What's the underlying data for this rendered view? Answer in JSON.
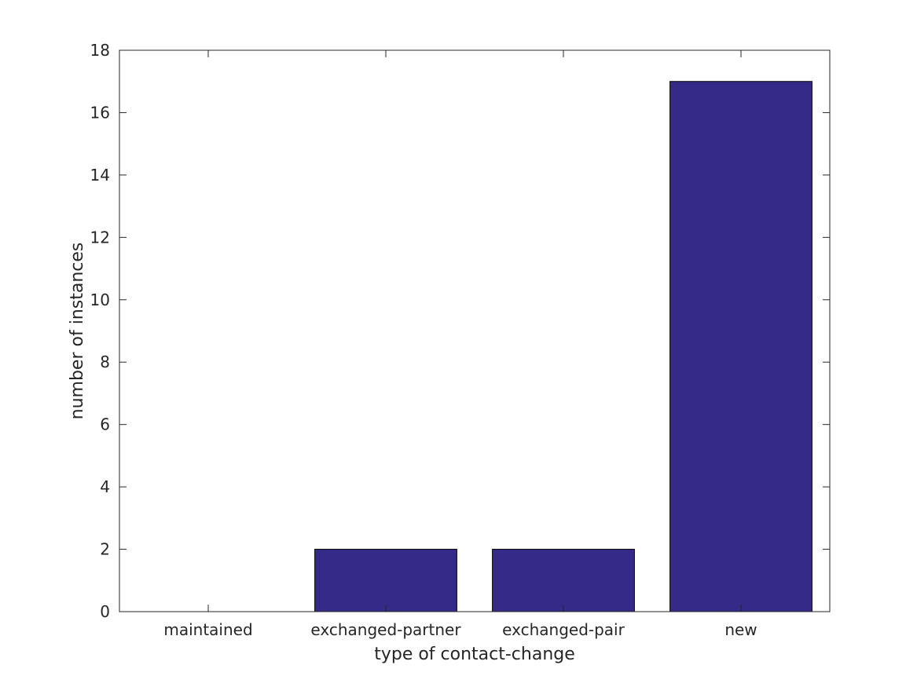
{
  "chart_data": {
    "type": "bar",
    "title": "",
    "xlabel": "type of contact-change",
    "ylabel": "number of instances",
    "categories": [
      "maintained",
      "exchanged-partner",
      "exchanged-pair",
      "new"
    ],
    "values": [
      0,
      2,
      2,
      17
    ],
    "ylim": [
      0,
      18
    ],
    "yticks": [
      0,
      2,
      4,
      6,
      8,
      10,
      12,
      14,
      16,
      18
    ],
    "grid": false,
    "legend": "none",
    "bar_color": "#352a87",
    "bar_edge_color": "#000000"
  }
}
